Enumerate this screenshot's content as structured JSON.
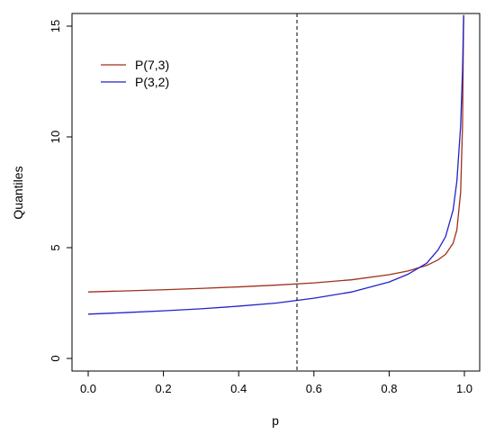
{
  "chart_data": {
    "type": "line",
    "title": "",
    "xlabel": "p",
    "ylabel": "Quantiles",
    "xlim": [
      0,
      1
    ],
    "ylim": [
      0,
      15.5
    ],
    "xticks": [
      0.0,
      0.2,
      0.4,
      0.6,
      0.8,
      1.0
    ],
    "xtick_labels": [
      "0.0",
      "0.2",
      "0.4",
      "0.6",
      "0.8",
      "1.0"
    ],
    "yticks": [
      0,
      5,
      10,
      15
    ],
    "ytick_labels": [
      "0",
      "5",
      "10",
      "15"
    ],
    "grid": false,
    "legend_position": "top-left",
    "vline": {
      "x": 0.555,
      "style": "dashed",
      "color": "#000000"
    },
    "series": [
      {
        "name": "P(7,3)",
        "color": "#a0301c",
        "x": [
          0.0,
          0.1,
          0.2,
          0.3,
          0.4,
          0.5,
          0.6,
          0.7,
          0.8,
          0.85,
          0.9,
          0.93,
          0.95,
          0.97,
          0.98,
          0.99,
          0.995,
          0.998
        ],
        "y": [
          3.0,
          3.05,
          3.1,
          3.16,
          3.23,
          3.31,
          3.41,
          3.55,
          3.78,
          3.95,
          4.2,
          4.45,
          4.7,
          5.2,
          5.8,
          7.5,
          10.5,
          15.5
        ]
      },
      {
        "name": "P(3,2)",
        "color": "#2222cc",
        "x": [
          0.0,
          0.1,
          0.2,
          0.3,
          0.4,
          0.5,
          0.6,
          0.7,
          0.8,
          0.85,
          0.9,
          0.93,
          0.95,
          0.97,
          0.98,
          0.99,
          0.995,
          0.998
        ],
        "y": [
          2.0,
          2.07,
          2.15,
          2.24,
          2.36,
          2.5,
          2.72,
          3.0,
          3.45,
          3.8,
          4.3,
          4.9,
          5.5,
          6.7,
          8.0,
          10.5,
          13.0,
          15.5
        ]
      }
    ]
  }
}
